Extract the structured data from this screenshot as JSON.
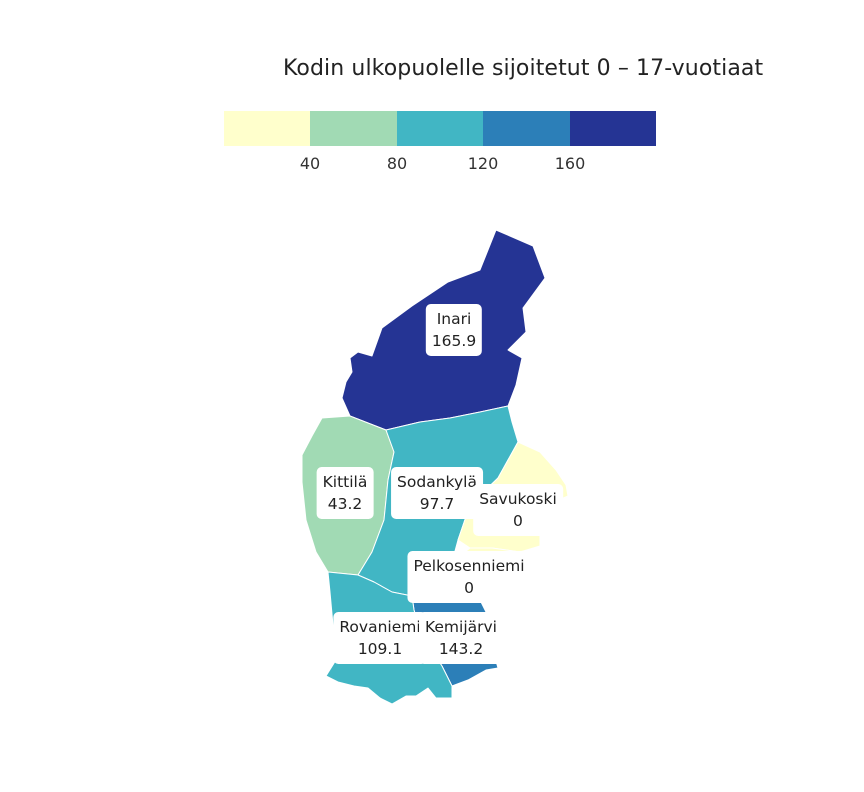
{
  "title": "Kodin ulkopuolelle sijoitetut 0 – 17-vuotiaat",
  "legend": {
    "bins": [
      {
        "color": "#ffffcc"
      },
      {
        "color": "#a1dab4"
      },
      {
        "color": "#41b6c4"
      },
      {
        "color": "#2c7fb8"
      },
      {
        "color": "#253494"
      }
    ],
    "ticks": [
      "40",
      "80",
      "120",
      "160"
    ]
  },
  "regions": [
    {
      "name": "Inari",
      "value": "165.9",
      "color": "#253494"
    },
    {
      "name": "Kittilä",
      "value": "43.2",
      "color": "#a1dab4"
    },
    {
      "name": "Sodankylä",
      "value": "97.7",
      "color": "#41b6c4"
    },
    {
      "name": "Savukoski",
      "value": "0",
      "color": "#ffffcc"
    },
    {
      "name": "Pelkosenniemi",
      "value": "0",
      "color": "#ffffcc"
    },
    {
      "name": "Rovaniemi",
      "value": "109.1",
      "color": "#41b6c4"
    },
    {
      "name": "Kemijärvi",
      "value": "143.2",
      "color": "#2c7fb8"
    }
  ]
}
